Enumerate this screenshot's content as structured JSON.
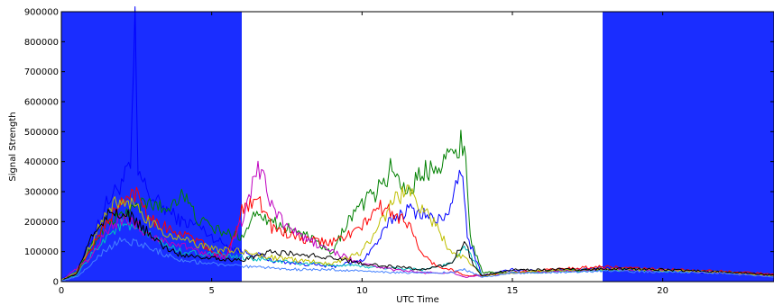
{
  "chart_data": {
    "type": "line",
    "title": "",
    "xlabel": "UTC Time",
    "ylabel": "Signal Strength",
    "xlim": [
      0,
      23.7
    ],
    "ylim": [
      0,
      900000
    ],
    "xticks": [
      0,
      5,
      10,
      15,
      20
    ],
    "xtick_labels": [
      "0",
      "5",
      "10",
      "15",
      "20"
    ],
    "yticks": [
      0,
      100000,
      200000,
      300000,
      400000,
      500000,
      600000,
      700000,
      800000,
      900000
    ],
    "ytick_labels": [
      "0",
      "100000",
      "200000",
      "300000",
      "400000",
      "500000",
      "600000",
      "700000",
      "800000",
      "900000"
    ],
    "grid": false,
    "legend": "none",
    "night_spans": [
      {
        "x0": 0,
        "x1": 6,
        "color": "#1a2dff"
      },
      {
        "x0": 18,
        "x1": 23.7,
        "color": "#1a2dff"
      }
    ],
    "series": [
      {
        "color": "#0000ff",
        "points": [
          [
            0,
            10000
          ],
          [
            0.5,
            30000
          ],
          [
            1,
            140000
          ],
          [
            1.5,
            260000
          ],
          [
            2,
            330000
          ],
          [
            2.3,
            380000
          ],
          [
            2.45,
            830000
          ],
          [
            2.55,
            360000
          ],
          [
            3,
            280000
          ],
          [
            3.5,
            240000
          ],
          [
            4,
            200000
          ],
          [
            4.5,
            190000
          ],
          [
            5,
            150000
          ],
          [
            5.5,
            120000
          ],
          [
            6,
            100000
          ],
          [
            6.5,
            90000
          ],
          [
            7,
            70000
          ],
          [
            8,
            60000
          ],
          [
            9,
            50000
          ],
          [
            10,
            70000
          ],
          [
            10.5,
            130000
          ],
          [
            11,
            210000
          ],
          [
            11.5,
            240000
          ],
          [
            12,
            230000
          ],
          [
            12.5,
            200000
          ],
          [
            13,
            250000
          ],
          [
            13.3,
            390000
          ],
          [
            13.5,
            150000
          ],
          [
            14,
            20000
          ],
          [
            15,
            40000
          ],
          [
            16,
            35000
          ],
          [
            17,
            40000
          ],
          [
            18,
            45000
          ],
          [
            19,
            40000
          ],
          [
            20,
            35000
          ],
          [
            21,
            30000
          ],
          [
            22,
            30000
          ],
          [
            23.7,
            20000
          ]
        ]
      },
      {
        "color": "#008000",
        "points": [
          [
            0,
            5000
          ],
          [
            0.5,
            30000
          ],
          [
            1,
            120000
          ],
          [
            1.5,
            190000
          ],
          [
            2,
            220000
          ],
          [
            2.5,
            250000
          ],
          [
            3,
            260000
          ],
          [
            3.5,
            240000
          ],
          [
            4,
            300000
          ],
          [
            4.5,
            210000
          ],
          [
            5,
            180000
          ],
          [
            5.5,
            160000
          ],
          [
            6,
            150000
          ],
          [
            6.5,
            240000
          ],
          [
            7,
            200000
          ],
          [
            8,
            160000
          ],
          [
            8.5,
            130000
          ],
          [
            9,
            90000
          ],
          [
            9.5,
            200000
          ],
          [
            10,
            260000
          ],
          [
            10.5,
            300000
          ],
          [
            11,
            380000
          ],
          [
            11.5,
            300000
          ],
          [
            12,
            360000
          ],
          [
            12.5,
            400000
          ],
          [
            13,
            420000
          ],
          [
            13.4,
            480000
          ],
          [
            13.6,
            150000
          ],
          [
            14,
            30000
          ],
          [
            15,
            30000
          ],
          [
            16,
            35000
          ],
          [
            17,
            38000
          ],
          [
            18,
            40000
          ],
          [
            20,
            38000
          ],
          [
            22,
            32000
          ],
          [
            23.7,
            20000
          ]
        ]
      },
      {
        "color": "#ff0000",
        "points": [
          [
            0,
            5000
          ],
          [
            0.5,
            25000
          ],
          [
            1,
            110000
          ],
          [
            1.5,
            200000
          ],
          [
            2,
            260000
          ],
          [
            2.5,
            300000
          ],
          [
            3,
            210000
          ],
          [
            3.5,
            180000
          ],
          [
            4,
            160000
          ],
          [
            4.5,
            140000
          ],
          [
            5,
            100000
          ],
          [
            5.5,
            80000
          ],
          [
            6,
            240000
          ],
          [
            6.5,
            290000
          ],
          [
            7,
            180000
          ],
          [
            8,
            140000
          ],
          [
            9,
            130000
          ],
          [
            10,
            180000
          ],
          [
            10.5,
            250000
          ],
          [
            11,
            230000
          ],
          [
            11.5,
            200000
          ],
          [
            12,
            90000
          ],
          [
            12.5,
            50000
          ],
          [
            13,
            40000
          ],
          [
            13.4,
            20000
          ],
          [
            14,
            20000
          ],
          [
            15,
            30000
          ],
          [
            16,
            38000
          ],
          [
            17,
            45000
          ],
          [
            18,
            50000
          ],
          [
            19,
            45000
          ],
          [
            20,
            40000
          ],
          [
            22,
            35000
          ],
          [
            23.7,
            25000
          ]
        ]
      },
      {
        "color": "#00bfbf",
        "points": [
          [
            0,
            3000
          ],
          [
            0.5,
            20000
          ],
          [
            1,
            90000
          ],
          [
            1.5,
            150000
          ],
          [
            2,
            190000
          ],
          [
            2.5,
            170000
          ],
          [
            3,
            150000
          ],
          [
            3.5,
            120000
          ],
          [
            4,
            100000
          ],
          [
            5,
            90000
          ],
          [
            5.5,
            85000
          ],
          [
            6,
            80000
          ],
          [
            7,
            70000
          ],
          [
            8,
            60000
          ],
          [
            9,
            55000
          ],
          [
            10,
            50000
          ],
          [
            11,
            45000
          ],
          [
            12,
            40000
          ],
          [
            13,
            60000
          ],
          [
            13.4,
            120000
          ],
          [
            14,
            20000
          ],
          [
            15,
            30000
          ],
          [
            16,
            30000
          ],
          [
            17,
            35000
          ],
          [
            18,
            38000
          ],
          [
            20,
            35000
          ],
          [
            22,
            30000
          ],
          [
            23.7,
            20000
          ]
        ]
      },
      {
        "color": "#bf00bf",
        "points": [
          [
            0,
            4000
          ],
          [
            1,
            80000
          ],
          [
            1.5,
            170000
          ],
          [
            2,
            210000
          ],
          [
            2.5,
            190000
          ],
          [
            3,
            150000
          ],
          [
            4,
            120000
          ],
          [
            5,
            90000
          ],
          [
            5.5,
            80000
          ],
          [
            6,
            200000
          ],
          [
            6.3,
            300000
          ],
          [
            6.6,
            380000
          ],
          [
            7,
            250000
          ],
          [
            7.5,
            180000
          ],
          [
            8,
            150000
          ],
          [
            9,
            100000
          ],
          [
            10,
            60000
          ],
          [
            11,
            40000
          ],
          [
            12,
            30000
          ],
          [
            13,
            30000
          ],
          [
            13.4,
            15000
          ],
          [
            14,
            20000
          ],
          [
            15,
            30000
          ],
          [
            16,
            32000
          ],
          [
            17,
            38000
          ],
          [
            18,
            40000
          ],
          [
            20,
            38000
          ],
          [
            22,
            30000
          ],
          [
            23.7,
            18000
          ]
        ]
      },
      {
        "color": "#bfbf00",
        "points": [
          [
            0,
            5000
          ],
          [
            0.5,
            30000
          ],
          [
            1,
            130000
          ],
          [
            1.5,
            230000
          ],
          [
            2,
            280000
          ],
          [
            2.5,
            240000
          ],
          [
            3,
            190000
          ],
          [
            3.5,
            160000
          ],
          [
            4,
            140000
          ],
          [
            5,
            110000
          ],
          [
            6,
            100000
          ],
          [
            7,
            80000
          ],
          [
            8,
            70000
          ],
          [
            9,
            60000
          ],
          [
            10,
            100000
          ],
          [
            10.5,
            170000
          ],
          [
            11,
            270000
          ],
          [
            11.5,
            300000
          ],
          [
            12,
            250000
          ],
          [
            12.5,
            180000
          ],
          [
            13,
            90000
          ],
          [
            13.4,
            80000
          ],
          [
            14,
            20000
          ],
          [
            15,
            30000
          ],
          [
            16,
            35000
          ],
          [
            17,
            38000
          ],
          [
            18,
            42000
          ],
          [
            20,
            38000
          ],
          [
            22,
            30000
          ],
          [
            23.7,
            20000
          ]
        ]
      },
      {
        "color": "#000000",
        "points": [
          [
            0,
            4000
          ],
          [
            0.5,
            25000
          ],
          [
            1,
            150000
          ],
          [
            1.5,
            220000
          ],
          [
            2,
            230000
          ],
          [
            2.5,
            200000
          ],
          [
            3,
            150000
          ],
          [
            3.5,
            110000
          ],
          [
            4,
            90000
          ],
          [
            5,
            80000
          ],
          [
            6,
            70000
          ],
          [
            7,
            100000
          ],
          [
            8,
            90000
          ],
          [
            9,
            80000
          ],
          [
            10,
            60000
          ],
          [
            11,
            50000
          ],
          [
            12,
            40000
          ],
          [
            13,
            60000
          ],
          [
            13.4,
            140000
          ],
          [
            13.7,
            50000
          ],
          [
            14,
            20000
          ],
          [
            15,
            40000
          ],
          [
            16,
            40000
          ],
          [
            17,
            40000
          ],
          [
            18,
            42000
          ],
          [
            20,
            40000
          ],
          [
            22,
            32000
          ],
          [
            23.7,
            22000
          ]
        ]
      },
      {
        "color": "#4682ff",
        "points": [
          [
            0,
            3000
          ],
          [
            0.5,
            15000
          ],
          [
            1,
            60000
          ],
          [
            1.5,
            110000
          ],
          [
            2,
            140000
          ],
          [
            2.5,
            130000
          ],
          [
            3,
            110000
          ],
          [
            3.5,
            90000
          ],
          [
            4,
            70000
          ],
          [
            5,
            60000
          ],
          [
            6,
            50000
          ],
          [
            7,
            45000
          ],
          [
            8,
            40000
          ],
          [
            9,
            40000
          ],
          [
            10,
            35000
          ],
          [
            11,
            30000
          ],
          [
            12,
            30000
          ],
          [
            13,
            30000
          ],
          [
            13.4,
            40000
          ],
          [
            14,
            15000
          ],
          [
            15,
            28000
          ],
          [
            16,
            30000
          ],
          [
            17,
            32000
          ],
          [
            18,
            35000
          ],
          [
            20,
            32000
          ],
          [
            22,
            28000
          ],
          [
            23.7,
            15000
          ]
        ]
      }
    ]
  }
}
